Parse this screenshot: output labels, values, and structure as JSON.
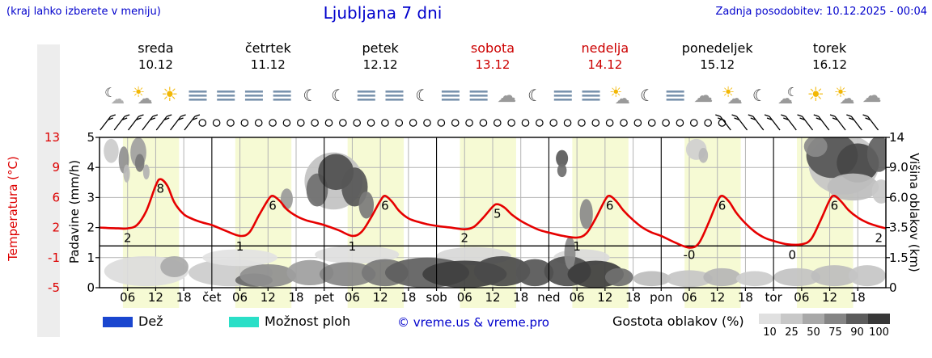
{
  "header": {
    "hint": "(kraj lahko izberete v meniju)",
    "title": "Ljubljana 7 dni",
    "updated": "Zadnja posodobitev: 10.12.2025 - 00:04"
  },
  "days": [
    {
      "name": "sreda",
      "date": "10.12",
      "color": "#000000",
      "icons": [
        "moon-cloud",
        "sun-cloud",
        "sun",
        "fog"
      ]
    },
    {
      "name": "četrtek",
      "date": "11.12",
      "color": "#000000",
      "icons": [
        "fog",
        "fog",
        "fog",
        "moon"
      ]
    },
    {
      "name": "petek",
      "date": "12.12",
      "color": "#000000",
      "icons": [
        "moon",
        "fog",
        "fog",
        "moon"
      ]
    },
    {
      "name": "sobota",
      "date": "13.12",
      "color": "#cc0000",
      "icons": [
        "fog",
        "fog",
        "cloud",
        "moon"
      ]
    },
    {
      "name": "nedelja",
      "date": "14.12",
      "color": "#cc0000",
      "icons": [
        "fog",
        "fog",
        "sun-cloud",
        "moon"
      ]
    },
    {
      "name": "ponedeljek",
      "date": "15.12",
      "color": "#000000",
      "icons": [
        "fog",
        "cloud",
        "sun-cloud",
        "moon"
      ]
    },
    {
      "name": "torek",
      "date": "16.12",
      "color": "#000000",
      "icons": [
        "cloud-moon",
        "sun",
        "sun-cloud",
        "cloud"
      ]
    }
  ],
  "axes": {
    "temperature": {
      "label": "Temperatura (°C)",
      "color": "#dd0000",
      "ticks": [
        "13",
        "9",
        "6",
        "2",
        "-1",
        "-5"
      ]
    },
    "precipitation": {
      "label": "Padavine (mm/h)",
      "ticks": [
        "5",
        "4",
        "3",
        "2",
        "1",
        "0"
      ]
    },
    "cloud_height": {
      "label": "Višina oblakov (km)",
      "ticks": [
        "14",
        "9.0",
        "6.0",
        "3.5",
        "1.5",
        "0"
      ]
    }
  },
  "x_axis": {
    "hour_labels": [
      "06",
      "12",
      "18"
    ],
    "day_abbrs": [
      "čet",
      "pet",
      "sob",
      "ned",
      "pon",
      "tor"
    ]
  },
  "legend": {
    "rain": "Dež",
    "rain_color": "#1a46cf",
    "showers": "Možnost ploh",
    "showers_color": "#2adfc7",
    "copyright": "© vreme.us & vreme.pro",
    "cloud_density": "Gostota oblakov (%)",
    "density_steps": [
      {
        "label": "10",
        "color": "#e0e0e0"
      },
      {
        "label": "25",
        "color": "#c8c8c8"
      },
      {
        "label": "50",
        "color": "#a8a8a8"
      },
      {
        "label": "75",
        "color": "#858585"
      },
      {
        "label": "90",
        "color": "#5c5c5c"
      },
      {
        "label": "100",
        "color": "#383838"
      }
    ]
  },
  "chart_data": {
    "type": "line",
    "title": "Ljubljana 7 dni",
    "x_axis_description": "hours from 10.12 00:00, ticks every 6 h, 7 days total (168 h)",
    "y_left_precipitation_mm_h": {
      "min": 0,
      "max": 5,
      "ticks": [
        0,
        1,
        2,
        3,
        4,
        5
      ]
    },
    "y_temperature_c": {
      "min": -5,
      "max": 13,
      "gridline_values": [
        -5,
        -1,
        2,
        6,
        9,
        13
      ]
    },
    "y_right_cloud_height_km": {
      "ticks": [
        0,
        1.5,
        3.5,
        6.0,
        9.0,
        14
      ]
    },
    "freezing_line_c": 0,
    "precipitation_bars": [],
    "series": [
      {
        "name": "Temperatura (°C)",
        "color": "#e60000",
        "points": [
          [
            0,
            2.2
          ],
          [
            4,
            2.1
          ],
          [
            6,
            2.1
          ],
          [
            8,
            2.5
          ],
          [
            10,
            4.2
          ],
          [
            12,
            7.2
          ],
          [
            13,
            8
          ],
          [
            14.5,
            7.2
          ],
          [
            16,
            5.2
          ],
          [
            18,
            3.8
          ],
          [
            20,
            3.2
          ],
          [
            22,
            2.8
          ],
          [
            24,
            2.5
          ],
          [
            27,
            1.8
          ],
          [
            30,
            1.2
          ],
          [
            32,
            1.6
          ],
          [
            34,
            3.6
          ],
          [
            36,
            5.5
          ],
          [
            37,
            6
          ],
          [
            38.5,
            5.4
          ],
          [
            40,
            4.4
          ],
          [
            42,
            3.6
          ],
          [
            44,
            3.1
          ],
          [
            46,
            2.8
          ],
          [
            48,
            2.5
          ],
          [
            51,
            1.9
          ],
          [
            54,
            1.2
          ],
          [
            56,
            1.7
          ],
          [
            58,
            3.4
          ],
          [
            60,
            5.4
          ],
          [
            61,
            6
          ],
          [
            62.5,
            5.3
          ],
          [
            64,
            4.2
          ],
          [
            66,
            3.3
          ],
          [
            68,
            2.9
          ],
          [
            70,
            2.6
          ],
          [
            72,
            2.4
          ],
          [
            75,
            2.2
          ],
          [
            78,
            2.0
          ],
          [
            80,
            2.3
          ],
          [
            82,
            3.4
          ],
          [
            84,
            4.7
          ],
          [
            85,
            5
          ],
          [
            86.5,
            4.6
          ],
          [
            88,
            3.8
          ],
          [
            90,
            3.0
          ],
          [
            92,
            2.4
          ],
          [
            94,
            1.9
          ],
          [
            96,
            1.6
          ],
          [
            99,
            1.2
          ],
          [
            102,
            1.0
          ],
          [
            104,
            1.5
          ],
          [
            106,
            3.3
          ],
          [
            108,
            5.5
          ],
          [
            109,
            6
          ],
          [
            110.5,
            5.3
          ],
          [
            112,
            4.2
          ],
          [
            114,
            3.1
          ],
          [
            116,
            2.2
          ],
          [
            118,
            1.6
          ],
          [
            120,
            1.2
          ],
          [
            123,
            0.4
          ],
          [
            126,
            -0.2
          ],
          [
            128,
            0.3
          ],
          [
            130,
            2.6
          ],
          [
            132,
            5.3
          ],
          [
            133,
            6
          ],
          [
            134.5,
            5.3
          ],
          [
            136,
            4.0
          ],
          [
            138,
            2.7
          ],
          [
            140,
            1.7
          ],
          [
            142,
            1.0
          ],
          [
            144,
            0.6
          ],
          [
            147,
            0.2
          ],
          [
            150,
            0.2
          ],
          [
            152,
            0.8
          ],
          [
            154,
            3.0
          ],
          [
            156,
            5.5
          ],
          [
            157,
            6
          ],
          [
            158.5,
            5.3
          ],
          [
            160,
            4.3
          ],
          [
            162,
            3.4
          ],
          [
            164,
            2.8
          ],
          [
            166,
            2.4
          ],
          [
            168,
            2.1
          ]
        ]
      }
    ],
    "temp_max_labels": [
      {
        "hour": 13,
        "value": "8"
      },
      {
        "hour": 37,
        "value": "6"
      },
      {
        "hour": 61,
        "value": "6"
      },
      {
        "hour": 85,
        "value": "5"
      },
      {
        "hour": 109,
        "value": "6"
      },
      {
        "hour": 133,
        "value": "6"
      },
      {
        "hour": 157,
        "value": "6"
      }
    ],
    "temp_min_labels": [
      {
        "hour": 6,
        "value": "2"
      },
      {
        "hour": 30,
        "value": "1"
      },
      {
        "hour": 54,
        "value": "1"
      },
      {
        "hour": 78,
        "value": "2"
      },
      {
        "hour": 102,
        "value": "1"
      },
      {
        "hour": 126,
        "value": "-0"
      },
      {
        "hour": 148,
        "value": "0"
      },
      {
        "hour": 166.5,
        "value": "2"
      }
    ],
    "daylight_bands_hours": [
      [
        5,
        17
      ],
      [
        29,
        41
      ],
      [
        53,
        65
      ],
      [
        77,
        89
      ],
      [
        101,
        113
      ],
      [
        125,
        137
      ],
      [
        149,
        161
      ]
    ],
    "cloud_shading_note": "blobs as [hour, plot-unit-y(0-5 maps to 0-14 km), rx-hours, ry-units, gray]",
    "cloud_shading_blobs": [
      [
        10,
        0.55,
        9,
        0.5,
        "#dcdcdc"
      ],
      [
        28,
        0.5,
        9,
        0.45,
        "#cccccc"
      ],
      [
        30,
        1.0,
        8,
        0.28,
        "#e2e2e2"
      ],
      [
        55,
        1.1,
        9,
        0.3,
        "#dedede"
      ],
      [
        80,
        1.05,
        8,
        0.3,
        "#d8d8d8"
      ],
      [
        103,
        1.0,
        6,
        0.28,
        "#dadada"
      ],
      [
        50,
        3.55,
        6.2,
        0.95,
        "#c2c2c2"
      ],
      [
        159,
        4.1,
        7.5,
        1.0,
        "#c6c6c6"
      ],
      [
        2.5,
        4.55,
        1.6,
        0.4,
        "#cccccc"
      ],
      [
        5.2,
        4.25,
        1.1,
        0.45,
        "#909090"
      ],
      [
        5.8,
        3.8,
        0.7,
        0.3,
        "#b8b8b8"
      ],
      [
        8.3,
        4.5,
        1.7,
        0.5,
        "#a0a0a0"
      ],
      [
        8.6,
        4.15,
        1.0,
        0.3,
        "#787878"
      ],
      [
        10,
        3.85,
        0.7,
        0.25,
        "#b2b2b2"
      ],
      [
        16,
        0.7,
        3,
        0.35,
        "#aaaaaa"
      ],
      [
        33,
        0.25,
        4,
        0.22,
        "#6a6a6a"
      ],
      [
        36,
        0.4,
        6,
        0.38,
        "#8f8f8f"
      ],
      [
        40,
        2.95,
        1.3,
        0.35,
        "#9a9a9a"
      ],
      [
        45,
        0.5,
        5,
        0.42,
        "#9e9e9e"
      ],
      [
        46.5,
        3.25,
        2.3,
        0.55,
        "#6f6f6f"
      ],
      [
        50.5,
        3.85,
        3.8,
        0.6,
        "#4e4e4e"
      ],
      [
        54.5,
        3.35,
        2.8,
        0.65,
        "#565656"
      ],
      [
        57,
        2.75,
        1.6,
        0.45,
        "#7a7a7a"
      ],
      [
        53,
        0.45,
        6,
        0.4,
        "#858585"
      ],
      [
        61,
        0.5,
        5,
        0.45,
        "#777777"
      ],
      [
        70,
        0.5,
        9,
        0.5,
        "#5e5e5e"
      ],
      [
        78,
        0.45,
        9,
        0.45,
        "#3f3f3f"
      ],
      [
        86,
        0.55,
        6,
        0.5,
        "#4a4a4a"
      ],
      [
        93,
        0.5,
        4,
        0.45,
        "#565656"
      ],
      [
        98.8,
        4.3,
        1.3,
        0.28,
        "#5a5a5a"
      ],
      [
        98.8,
        3.9,
        1.0,
        0.22,
        "#6e6e6e"
      ],
      [
        100,
        0.55,
        5,
        0.5,
        "#4f4f4f"
      ],
      [
        100.5,
        1.15,
        1.2,
        0.55,
        "#8a8a8a"
      ],
      [
        104,
        2.45,
        1.4,
        0.5,
        "#8a8a8a"
      ],
      [
        106,
        0.45,
        6,
        0.45,
        "#3d3d3d"
      ],
      [
        111,
        0.35,
        3,
        0.3,
        "#707070"
      ],
      [
        118,
        0.3,
        4,
        0.25,
        "#bdbdbd"
      ],
      [
        126,
        0.3,
        5,
        0.28,
        "#c6c6c6"
      ],
      [
        127.5,
        4.6,
        2.2,
        0.35,
        "#cfcfcf"
      ],
      [
        129,
        4.4,
        1,
        0.25,
        "#b8b8b8"
      ],
      [
        133,
        0.35,
        4,
        0.3,
        "#b5b5b5"
      ],
      [
        140,
        0.3,
        4,
        0.25,
        "#cccccc"
      ],
      [
        149,
        0.35,
        5,
        0.3,
        "#c2c2c2"
      ],
      [
        156.5,
        4.4,
        5.5,
        0.75,
        "#555555"
      ],
      [
        162,
        4.15,
        4.5,
        0.65,
        "#474747"
      ],
      [
        166.5,
        4.45,
        2.5,
        0.6,
        "#606060"
      ],
      [
        153,
        4.7,
        2.5,
        0.35,
        "#8a8a8a"
      ],
      [
        161,
        3.35,
        5.5,
        0.45,
        "#bdbdbd"
      ],
      [
        167,
        3.2,
        2.0,
        0.4,
        "#c9c9c9"
      ],
      [
        157,
        0.4,
        5,
        0.35,
        "#bdbdbd"
      ],
      [
        164,
        0.4,
        4,
        0.35,
        "#c6c6c6"
      ]
    ],
    "wind_row": {
      "calm_symbol": "open-circle",
      "calm_start_hour": 22,
      "calm_step_hours": 3,
      "calm_count": 38,
      "barb_hours_left": [
        1,
        4,
        7,
        10,
        13,
        16,
        19
      ],
      "barb_hours_right": [
        134,
        137.5,
        141,
        144.5,
        148,
        151.5,
        155,
        158.5,
        162,
        165.5
      ]
    }
  }
}
